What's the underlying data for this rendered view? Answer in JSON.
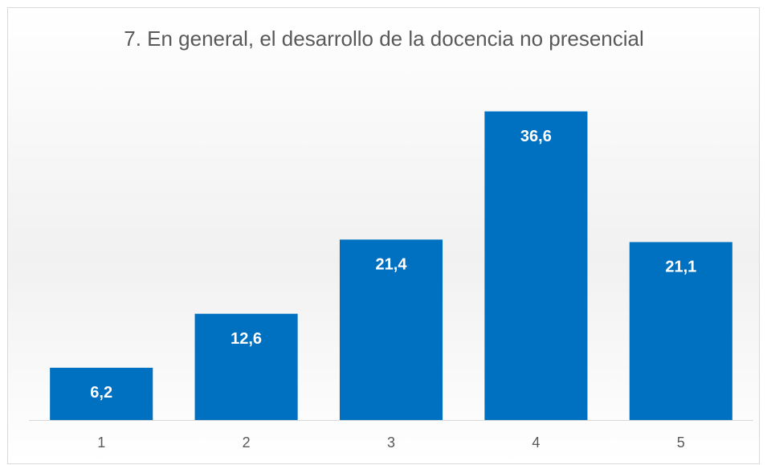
{
  "chart_data": {
    "type": "bar",
    "title": "7. En general, el desarrollo de la docencia no presencial",
    "categories": [
      "1",
      "2",
      "3",
      "4",
      "5"
    ],
    "values": [
      6.2,
      12.6,
      21.4,
      36.6,
      21.1
    ],
    "value_labels": [
      "6,2",
      "12,6",
      "21,4",
      "36,6",
      "21,1"
    ],
    "color": "#0070c0",
    "ylim": [
      0,
      40
    ]
  }
}
